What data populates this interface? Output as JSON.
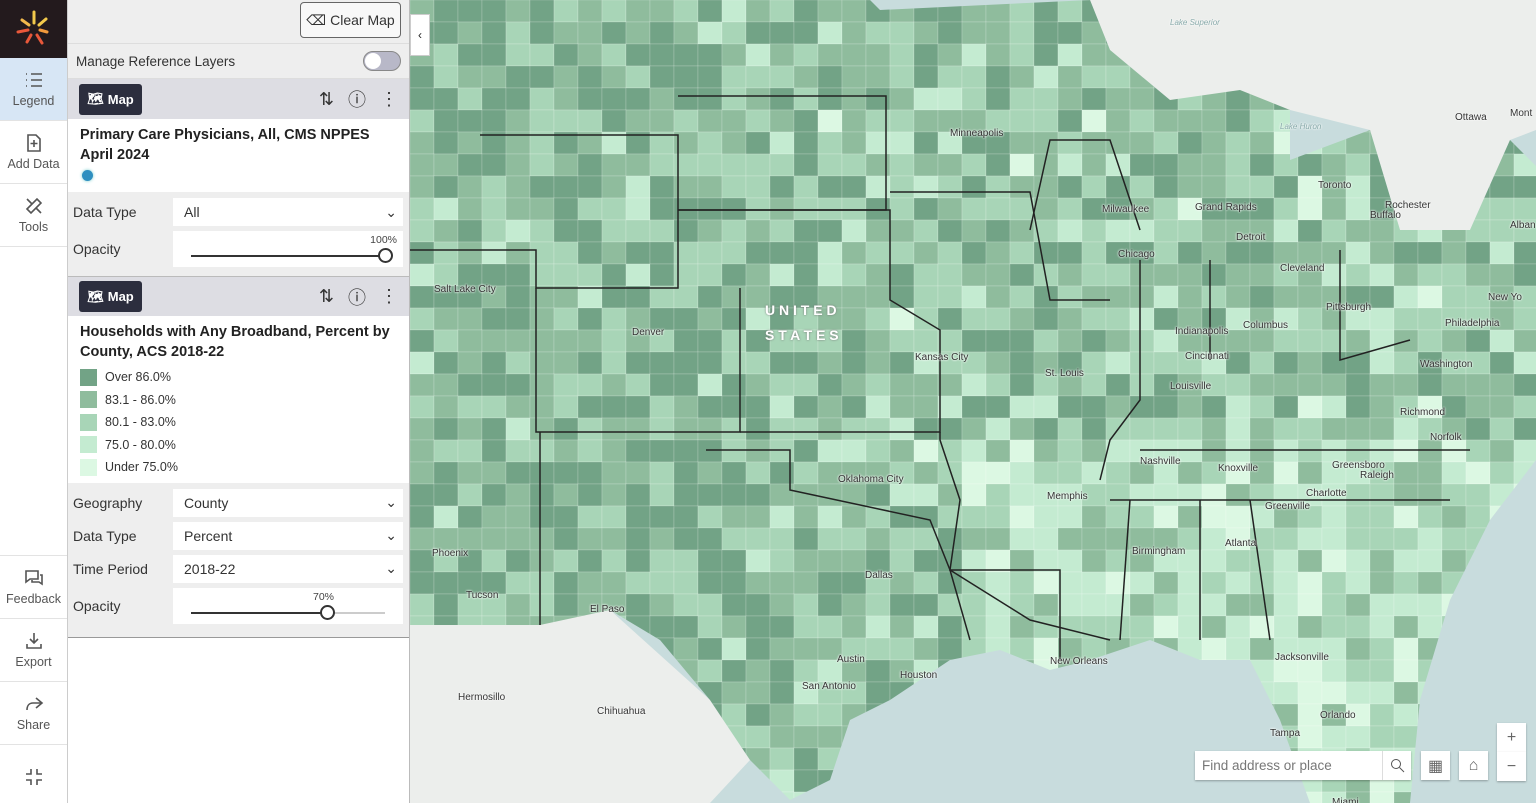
{
  "rail": {
    "items": [
      {
        "label": "Legend",
        "icon": "list-icon",
        "active": true
      },
      {
        "label": "Add Data",
        "icon": "add-file-icon"
      },
      {
        "label": "Tools",
        "icon": "tools-icon"
      }
    ],
    "bottom_items": [
      {
        "label": "Feedback",
        "icon": "chat-icon"
      },
      {
        "label": "Export",
        "icon": "download-icon"
      },
      {
        "label": "Share",
        "icon": "share-icon"
      }
    ]
  },
  "toolbar": {
    "clear_map": "Clear Map"
  },
  "reference": {
    "label": "Manage Reference Layers",
    "on": false
  },
  "layers": [
    {
      "badge": "Map",
      "title": "Primary Care Physicians, All, CMS NPPES April 2024",
      "dot_color": "#2e8fc0",
      "controls": {
        "data_type_label": "Data Type",
        "data_type": "All",
        "opacity_label": "Opacity",
        "opacity": "100%"
      }
    },
    {
      "badge": "Map",
      "title": "Households with Any Broadband, Percent by County, ACS 2018-22",
      "legend": [
        {
          "label": "Over 86.0%",
          "color": "#72a386"
        },
        {
          "label": "83.1 - 86.0%",
          "color": "#8fbc9d"
        },
        {
          "label": "80.1 - 83.0%",
          "color": "#a8d5b7"
        },
        {
          "label": "75.0 - 80.0%",
          "color": "#c4ebd1"
        },
        {
          "label": "Under 75.0%",
          "color": "#dcf8e3"
        }
      ],
      "controls": {
        "geography_label": "Geography",
        "geography": "County",
        "data_type_label": "Data Type",
        "data_type": "Percent",
        "time_label": "Time Period",
        "time": "2018-22",
        "opacity_label": "Opacity",
        "opacity": "70%"
      }
    }
  ],
  "map": {
    "search_placeholder": "Find address or place",
    "zoom_in": "+",
    "zoom_out": "−",
    "country_label": "U N I T E D",
    "country_label2": "S T A T E S",
    "cities": [
      "Lake Superior",
      "Ottawa",
      "Mont",
      "Minneapolis",
      "Lake Huron",
      "Toronto",
      "Rochester",
      "Buffalo",
      "Alban",
      "Milwaukee",
      "Grand Rapids",
      "Detroit",
      "Chicago",
      "Cleveland",
      "New Yo",
      "Salt Lake City",
      "Pittsburgh",
      "Philadelphia",
      "Denver",
      "Indianapolis",
      "Columbus",
      "Kansas City",
      "Cincinnati",
      "Washington",
      "St. Louis",
      "Louisville",
      "Richmond",
      "Norfolk",
      "Nashville",
      "Knoxville",
      "Greensboro",
      "Raleigh",
      "Oklahoma City",
      "Memphis",
      "Charlotte",
      "Greenville",
      "Phoenix",
      "Birmingham",
      "Atlanta",
      "Dallas",
      "Tucson",
      "El Paso",
      "Austin",
      "New Orleans",
      "Houston",
      "San Antonio",
      "Jacksonville",
      "Hermosillo",
      "Chihuahua",
      "Orlando",
      "Tampa",
      "Miami"
    ]
  }
}
